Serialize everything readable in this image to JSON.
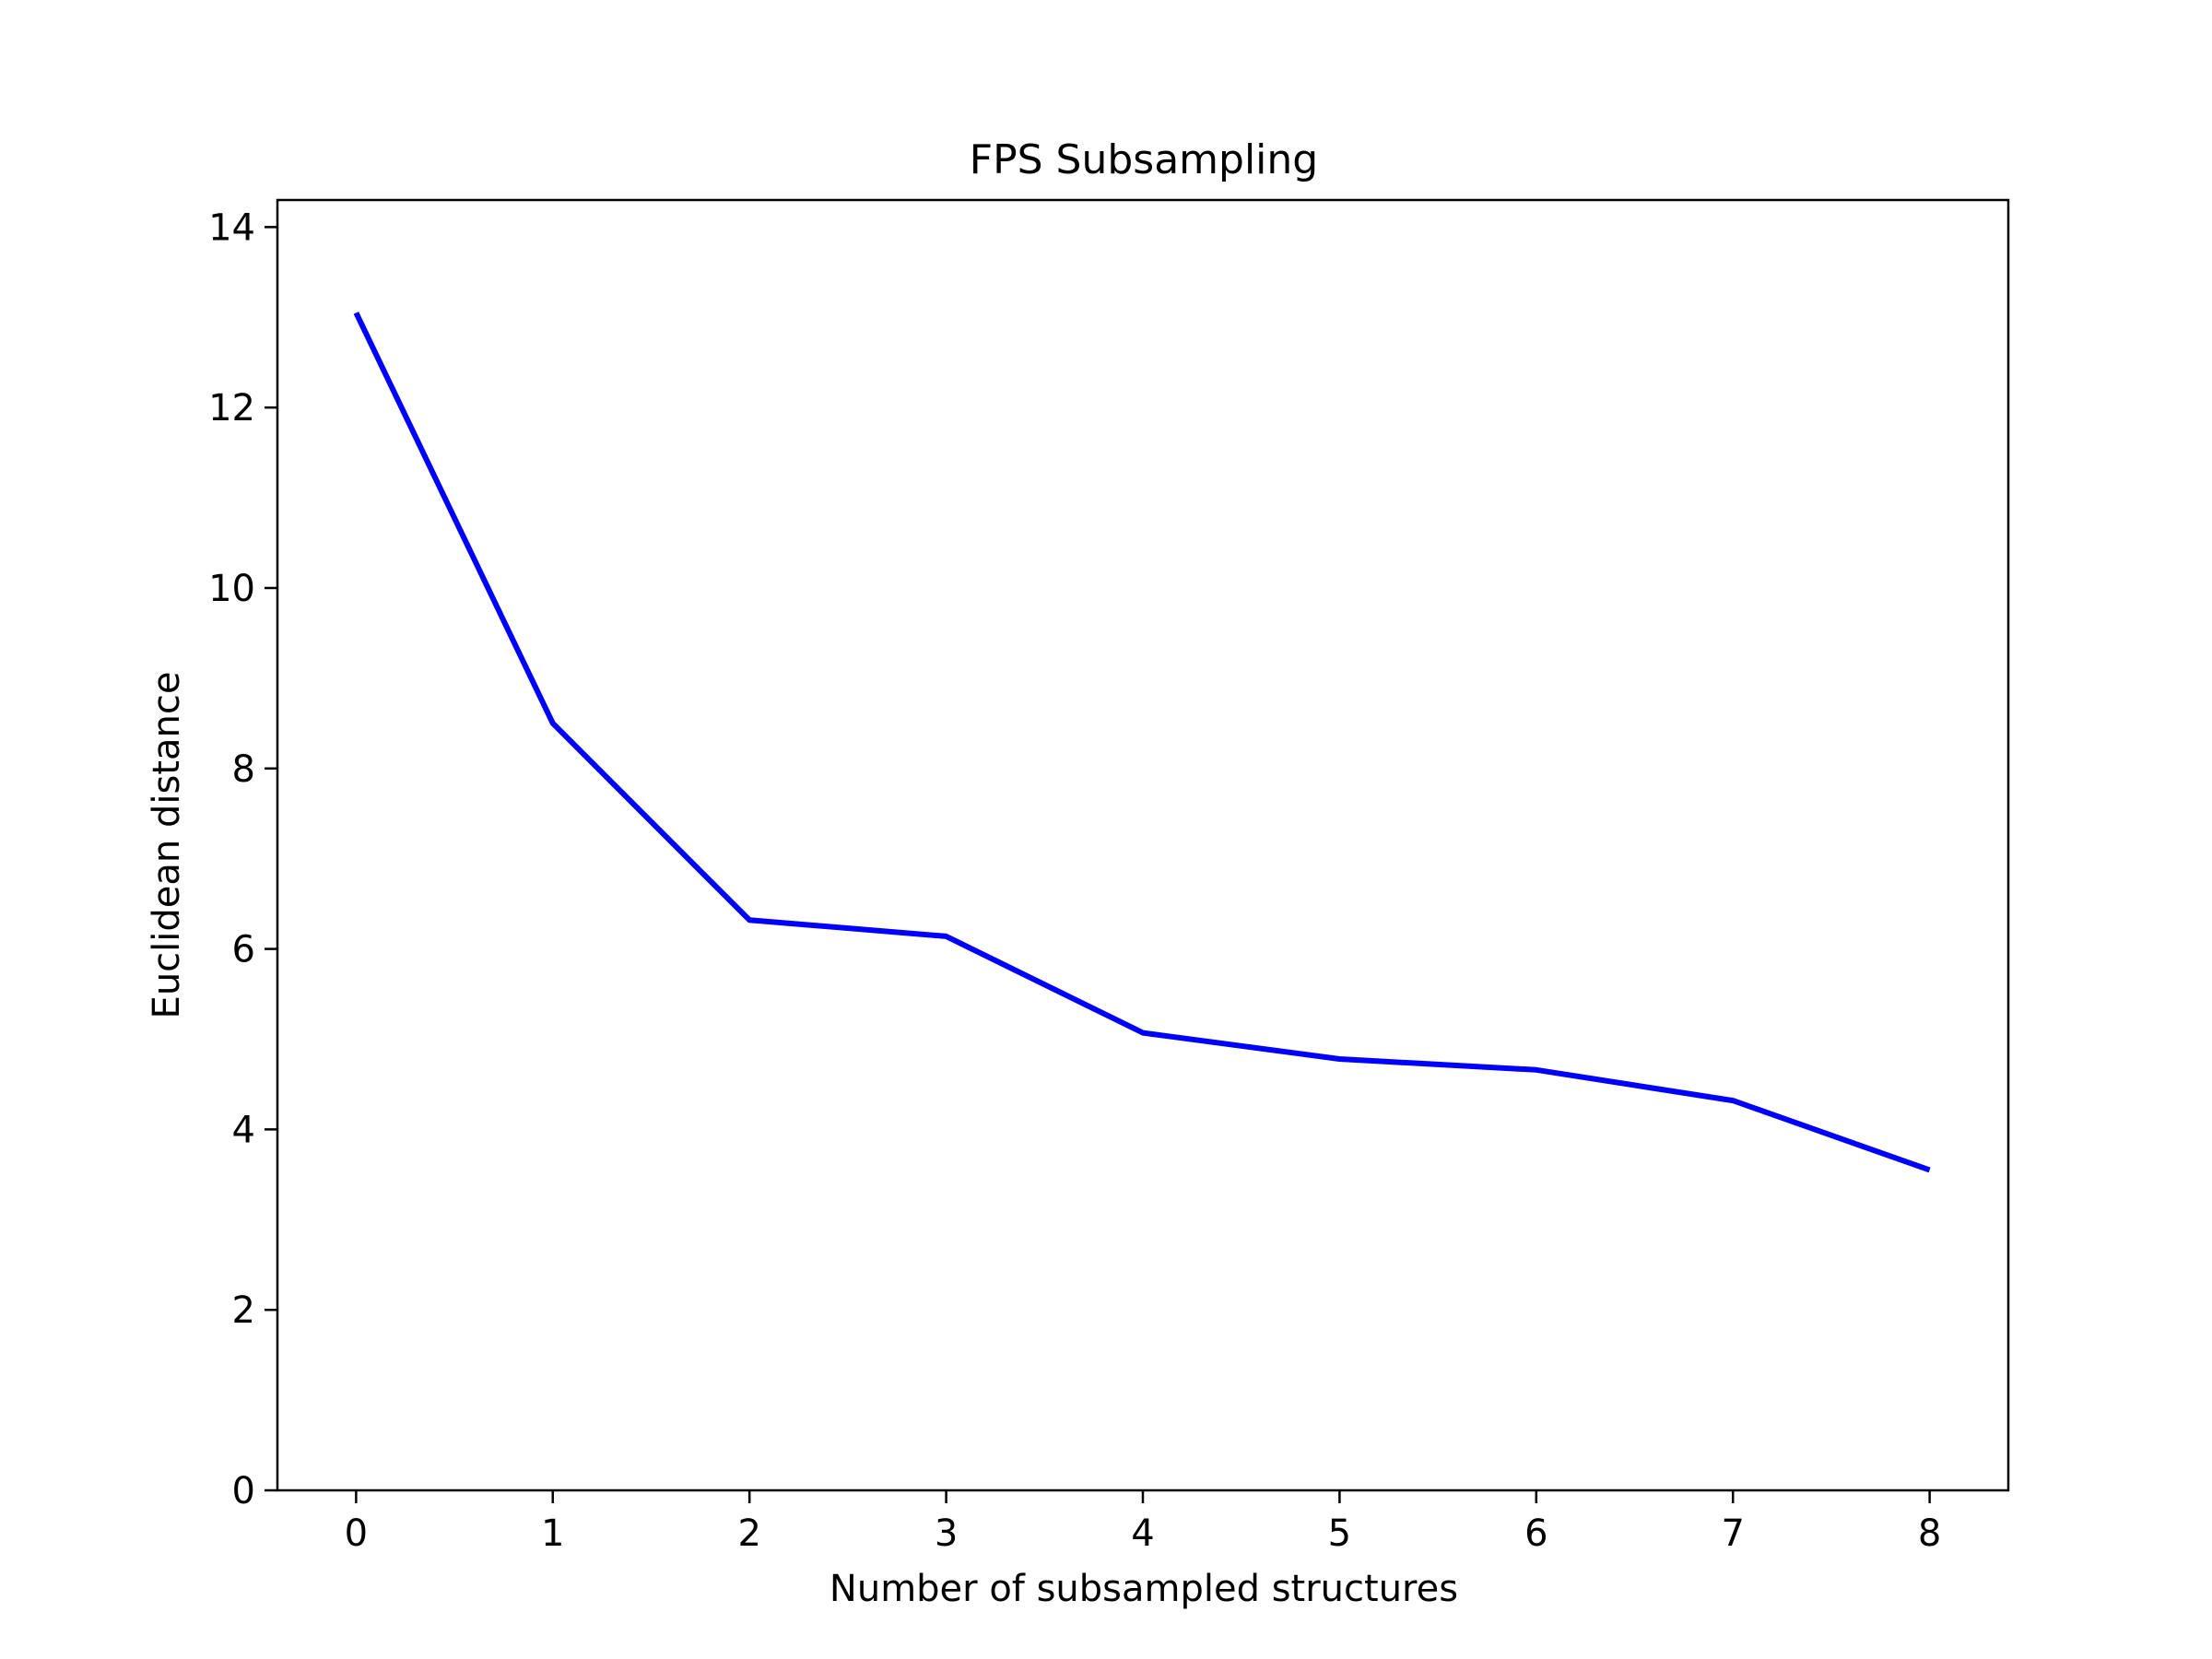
{
  "chart_data": {
    "type": "line",
    "title": "FPS Subsampling",
    "xlabel": "Number of subsampled structures",
    "ylabel": "Euclidean distance",
    "x": [
      0,
      1,
      2,
      3,
      4,
      5,
      6,
      7,
      8
    ],
    "series": [
      {
        "values": [
          13.05,
          8.5,
          6.32,
          6.14,
          5.07,
          4.78,
          4.66,
          4.32,
          3.55
        ],
        "color": "#0000ff"
      }
    ],
    "xlim": [
      -0.4,
      8.4
    ],
    "ylim": [
      0,
      14.3
    ],
    "x_ticks": [
      "0",
      "1",
      "2",
      "3",
      "4",
      "5",
      "6",
      "7",
      "8"
    ],
    "y_ticks": [
      "0",
      "2",
      "4",
      "6",
      "8",
      "10",
      "12",
      "14"
    ],
    "grid": false,
    "legend": "none"
  }
}
